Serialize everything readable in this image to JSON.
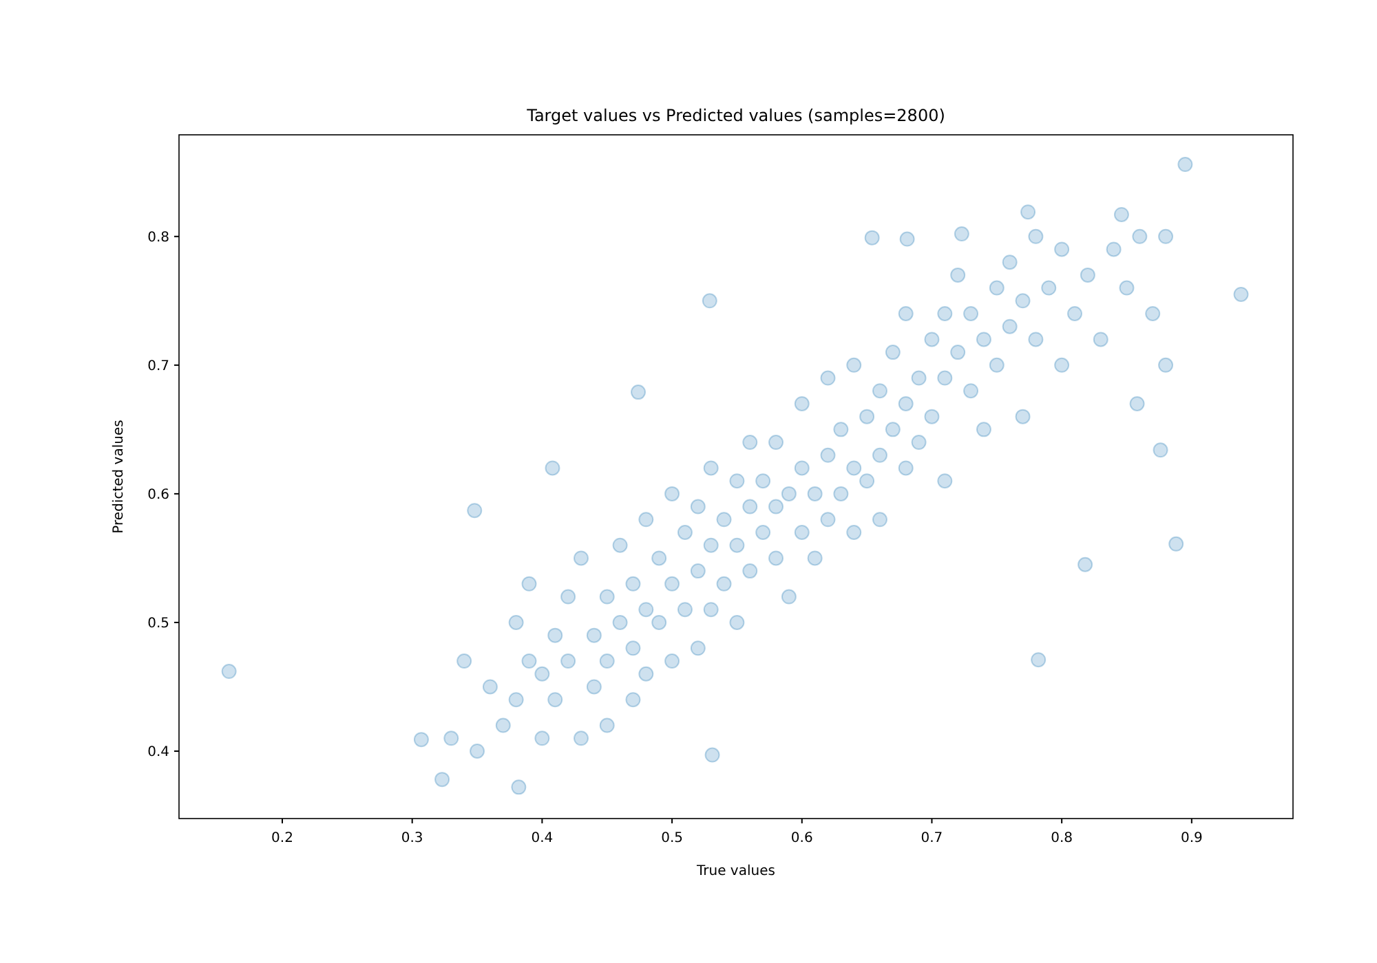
{
  "chart_data": {
    "type": "scatter",
    "title": "Target values vs Predicted values (samples=2800)",
    "xlabel": "True values",
    "ylabel": "Predicted values",
    "marker": "circle",
    "xlim": [
      0.1205,
      0.978
    ],
    "xticks": [
      0.2,
      0.3,
      0.4,
      0.5,
      0.6,
      0.7,
      0.8,
      0.9
    ],
    "ylim": [
      0.3476,
      0.879
    ],
    "yticks": [
      0.4,
      0.5,
      0.6,
      0.7,
      0.8
    ],
    "series": [
      {
        "color": "#1f77b4",
        "x": [
          0.159,
          0.348,
          0.895,
          0.938,
          0.529,
          0.408,
          0.782,
          0.888,
          0.474,
          0.382,
          0.323,
          0.307,
          0.531,
          0.818,
          0.858,
          0.876,
          0.774,
          0.846,
          0.681,
          0.654,
          0.723,
          0.33,
          0.34,
          0.35,
          0.36,
          0.37,
          0.38,
          0.38,
          0.39,
          0.39,
          0.4,
          0.4,
          0.41,
          0.41,
          0.42,
          0.42,
          0.43,
          0.43,
          0.44,
          0.44,
          0.45,
          0.45,
          0.45,
          0.46,
          0.46,
          0.47,
          0.47,
          0.47,
          0.48,
          0.48,
          0.48,
          0.49,
          0.49,
          0.5,
          0.5,
          0.5,
          0.51,
          0.51,
          0.52,
          0.52,
          0.52,
          0.53,
          0.53,
          0.53,
          0.54,
          0.54,
          0.55,
          0.55,
          0.55,
          0.56,
          0.56,
          0.56,
          0.57,
          0.57,
          0.58,
          0.58,
          0.58,
          0.59,
          0.59,
          0.6,
          0.6,
          0.6,
          0.61,
          0.61,
          0.62,
          0.62,
          0.62,
          0.63,
          0.63,
          0.64,
          0.64,
          0.64,
          0.65,
          0.65,
          0.66,
          0.66,
          0.66,
          0.67,
          0.67,
          0.68,
          0.68,
          0.68,
          0.69,
          0.69,
          0.7,
          0.7,
          0.71,
          0.71,
          0.71,
          0.72,
          0.72,
          0.73,
          0.73,
          0.74,
          0.74,
          0.75,
          0.75,
          0.76,
          0.76,
          0.77,
          0.77,
          0.78,
          0.78,
          0.79,
          0.8,
          0.8,
          0.81,
          0.82,
          0.83,
          0.84,
          0.85,
          0.86,
          0.87,
          0.88,
          0.88
        ],
        "values": [
          0.462,
          0.587,
          0.856,
          0.755,
          0.75,
          0.62,
          0.471,
          0.561,
          0.679,
          0.372,
          0.378,
          0.409,
          0.397,
          0.545,
          0.67,
          0.634,
          0.819,
          0.817,
          0.798,
          0.799,
          0.802,
          0.41,
          0.47,
          0.4,
          0.45,
          0.42,
          0.5,
          0.44,
          0.47,
          0.53,
          0.41,
          0.46,
          0.49,
          0.44,
          0.52,
          0.47,
          0.41,
          0.55,
          0.49,
          0.45,
          0.52,
          0.47,
          0.42,
          0.56,
          0.5,
          0.48,
          0.53,
          0.44,
          0.58,
          0.51,
          0.46,
          0.55,
          0.5,
          0.6,
          0.53,
          0.47,
          0.57,
          0.51,
          0.54,
          0.59,
          0.48,
          0.56,
          0.62,
          0.51,
          0.58,
          0.53,
          0.61,
          0.56,
          0.5,
          0.59,
          0.64,
          0.54,
          0.57,
          0.61,
          0.59,
          0.55,
          0.64,
          0.6,
          0.52,
          0.62,
          0.57,
          0.67,
          0.6,
          0.55,
          0.63,
          0.58,
          0.69,
          0.65,
          0.6,
          0.62,
          0.57,
          0.7,
          0.66,
          0.61,
          0.68,
          0.63,
          0.58,
          0.71,
          0.65,
          0.67,
          0.62,
          0.74,
          0.69,
          0.64,
          0.72,
          0.66,
          0.74,
          0.69,
          0.61,
          0.71,
          0.77,
          0.68,
          0.74,
          0.72,
          0.65,
          0.76,
          0.7,
          0.78,
          0.73,
          0.66,
          0.75,
          0.8,
          0.72,
          0.76,
          0.79,
          0.7,
          0.74,
          0.77,
          0.72,
          0.79,
          0.76,
          0.8,
          0.74,
          0.8,
          0.7
        ]
      }
    ]
  }
}
